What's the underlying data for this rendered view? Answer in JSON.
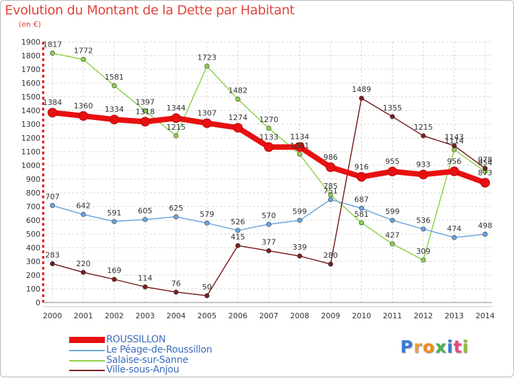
{
  "header": {
    "title": "Evolution du Montant de la Dette par Habitant",
    "unit": "(en €)"
  },
  "logo": {
    "text": "Proxiti",
    "colors": [
      "#3a7bd5",
      "#e8a23a",
      "#f08c1e",
      "#4caf50",
      "#3a7bd5",
      "#e84a7a",
      "#8fbf3a"
    ]
  },
  "chart_data": {
    "type": "line",
    "x": [
      "2000",
      "2001",
      "2002",
      "2003",
      "2004",
      "2005",
      "2006",
      "2007",
      "2008",
      "2009",
      "2010",
      "2011",
      "2012",
      "2013",
      "2014"
    ],
    "ylim": [
      0,
      1900
    ],
    "yticks": [
      0,
      100,
      200,
      300,
      400,
      500,
      600,
      700,
      800,
      900,
      1000,
      1100,
      1200,
      1300,
      1400,
      1500,
      1600,
      1700,
      1800,
      1900
    ],
    "grid": true,
    "legend_position": "bottom-left",
    "series": [
      {
        "name": "ROUSSILLON",
        "color": "#e81010",
        "points": [
          {
            "x": "2000",
            "y": 1384
          },
          {
            "x": "2001",
            "y": 1360
          },
          {
            "x": "2002",
            "y": 1334
          },
          {
            "x": "2003",
            "y": 1318
          },
          {
            "x": "2004",
            "y": 1344
          },
          {
            "x": "2005",
            "y": 1307
          },
          {
            "x": "2006",
            "y": 1274
          },
          {
            "x": "2007",
            "y": 1133
          },
          {
            "x": "2008",
            "y": 1134
          },
          {
            "x": "2009",
            "y": 986
          },
          {
            "x": "2010",
            "y": 916
          },
          {
            "x": "2011",
            "y": 955
          },
          {
            "x": "2012",
            "y": 933
          },
          {
            "x": "2013",
            "y": 956
          },
          {
            "x": "2014",
            "y": 873
          }
        ]
      },
      {
        "name": "Le Péage-de-Roussillon",
        "color": "#6aa5e0",
        "points": [
          {
            "x": "2000",
            "y": 707
          },
          {
            "x": "2001",
            "y": 642
          },
          {
            "x": "2002",
            "y": 591
          },
          {
            "x": "2003",
            "y": 605
          },
          {
            "x": "2004",
            "y": 625
          },
          {
            "x": "2005",
            "y": 579
          },
          {
            "x": "2006",
            "y": 526
          },
          {
            "x": "2007",
            "y": 570
          },
          {
            "x": "2008",
            "y": 599
          },
          {
            "x": "2009",
            "y": 751
          },
          {
            "x": "2010",
            "y": 687
          },
          {
            "x": "2011",
            "y": 599
          },
          {
            "x": "2012",
            "y": 536
          },
          {
            "x": "2013",
            "y": 474
          },
          {
            "x": "2014",
            "y": 498
          }
        ]
      },
      {
        "name": "Salaise-sur-Sanne",
        "color": "#8ed24a",
        "points": [
          {
            "x": "2000",
            "y": 1817
          },
          {
            "x": "2001",
            "y": 1772
          },
          {
            "x": "2002",
            "y": 1581
          },
          {
            "x": "2003",
            "y": 1397
          },
          {
            "x": "2004",
            "y": 1215
          },
          {
            "x": "2005",
            "y": 1723
          },
          {
            "x": "2006",
            "y": 1482
          },
          {
            "x": "2007",
            "y": 1270
          },
          {
            "x": "2008",
            "y": 1081
          },
          {
            "x": "2009",
            "y": 785
          },
          {
            "x": "2010",
            "y": 581
          },
          {
            "x": "2011",
            "y": 427
          },
          {
            "x": "2012",
            "y": 309
          },
          {
            "x": "2013",
            "y": 1114
          },
          {
            "x": "2014",
            "y": 954
          }
        ]
      },
      {
        "name": "Ville-sous-Anjou",
        "color": "#7a1e1e",
        "points": [
          {
            "x": "2000",
            "y": 283
          },
          {
            "x": "2001",
            "y": 220
          },
          {
            "x": "2002",
            "y": 169
          },
          {
            "x": "2003",
            "y": 114
          },
          {
            "x": "2004",
            "y": 76
          },
          {
            "x": "2005",
            "y": 50
          },
          {
            "x": "2006",
            "y": 415
          },
          {
            "x": "2007",
            "y": 377
          },
          {
            "x": "2008",
            "y": 339
          },
          {
            "x": "2009",
            "y": 280
          },
          {
            "x": "2010",
            "y": 1489
          },
          {
            "x": "2011",
            "y": 1355
          },
          {
            "x": "2012",
            "y": 1215
          },
          {
            "x": "2013",
            "y": 1143
          },
          {
            "x": "2014",
            "y": 978
          }
        ]
      }
    ]
  }
}
